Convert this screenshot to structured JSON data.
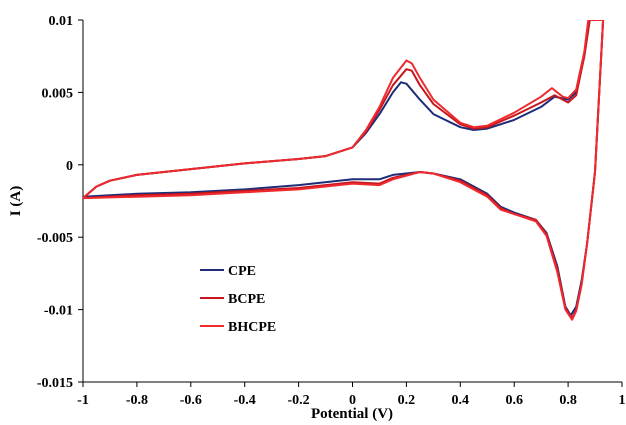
{
  "chart_data": {
    "type": "line",
    "title": "",
    "xlabel": "Potential (V)",
    "ylabel": "I (A)",
    "xlim": [
      -1,
      1
    ],
    "ylim": [
      -0.015,
      0.01
    ],
    "x_ticks": [
      -1,
      -0.8,
      -0.6,
      -0.4,
      -0.2,
      0,
      0.2,
      0.4,
      0.6,
      0.8,
      1
    ],
    "x_tick_labels": [
      "-1",
      "-0.8",
      "-0.6",
      "-0.4",
      "-0.2",
      "0",
      "0.2",
      "0.4",
      "0.6",
      "0.8",
      "1"
    ],
    "y_ticks": [
      0.01,
      0.005,
      0,
      -0.005,
      -0.01,
      -0.015
    ],
    "y_tick_labels": [
      "0.01",
      "0.005",
      "0",
      "-0.005",
      "-0.01",
      "-0.015"
    ],
    "grid": false,
    "legend_position": "bottom-left",
    "series": [
      {
        "name": "CPE",
        "color": "#1f2d78",
        "anodic": [
          [
            -1,
            -0.0023
          ],
          [
            -0.95,
            -0.0015
          ],
          [
            -0.9,
            -0.0011
          ],
          [
            -0.8,
            -0.0007
          ],
          [
            -0.6,
            -0.0003
          ],
          [
            -0.4,
            0.0001
          ],
          [
            -0.2,
            0.0004
          ],
          [
            -0.1,
            0.0006
          ],
          [
            0,
            0.0012
          ],
          [
            0.05,
            0.0022
          ],
          [
            0.1,
            0.0035
          ],
          [
            0.15,
            0.005
          ],
          [
            0.18,
            0.0057
          ],
          [
            0.2,
            0.0056
          ],
          [
            0.25,
            0.0045
          ],
          [
            0.3,
            0.0035
          ],
          [
            0.4,
            0.0026
          ],
          [
            0.45,
            0.0024
          ],
          [
            0.5,
            0.0025
          ],
          [
            0.6,
            0.0031
          ],
          [
            0.7,
            0.004
          ],
          [
            0.75,
            0.0047
          ],
          [
            0.8,
            0.0045
          ],
          [
            0.83,
            0.005
          ],
          [
            0.86,
            0.0075
          ],
          [
            0.88,
            0.01
          ]
        ],
        "cathodic": [
          [
            0.93,
            0.01
          ],
          [
            0.9,
            -0.0005
          ],
          [
            0.87,
            -0.0055
          ],
          [
            0.85,
            -0.008
          ],
          [
            0.83,
            -0.0098
          ],
          [
            0.81,
            -0.0104
          ],
          [
            0.79,
            -0.0098
          ],
          [
            0.76,
            -0.007
          ],
          [
            0.72,
            -0.0047
          ],
          [
            0.68,
            -0.0038
          ],
          [
            0.6,
            -0.0033
          ],
          [
            0.55,
            -0.0029
          ],
          [
            0.5,
            -0.002
          ],
          [
            0.4,
            -0.001
          ],
          [
            0.3,
            -0.0006
          ],
          [
            0.25,
            -0.0005
          ],
          [
            0.15,
            -0.0007
          ],
          [
            0.1,
            -0.001
          ],
          [
            0,
            -0.001
          ],
          [
            -0.2,
            -0.0014
          ],
          [
            -0.4,
            -0.0017
          ],
          [
            -0.6,
            -0.0019
          ],
          [
            -0.8,
            -0.002
          ],
          [
            -1,
            -0.0022
          ]
        ]
      },
      {
        "name": "BCPE",
        "color": "#c8161d",
        "anodic": [
          [
            -1,
            -0.0023
          ],
          [
            -0.95,
            -0.0015
          ],
          [
            -0.9,
            -0.0011
          ],
          [
            -0.8,
            -0.0007
          ],
          [
            -0.6,
            -0.0003
          ],
          [
            -0.4,
            0.0001
          ],
          [
            -0.2,
            0.0004
          ],
          [
            -0.1,
            0.0006
          ],
          [
            0,
            0.0012
          ],
          [
            0.05,
            0.0023
          ],
          [
            0.1,
            0.0038
          ],
          [
            0.15,
            0.0055
          ],
          [
            0.2,
            0.0066
          ],
          [
            0.22,
            0.0065
          ],
          [
            0.25,
            0.0055
          ],
          [
            0.3,
            0.0042
          ],
          [
            0.4,
            0.0028
          ],
          [
            0.45,
            0.0025
          ],
          [
            0.5,
            0.0026
          ],
          [
            0.6,
            0.0034
          ],
          [
            0.7,
            0.0043
          ],
          [
            0.75,
            0.0048
          ],
          [
            0.8,
            0.0043
          ],
          [
            0.83,
            0.0048
          ],
          [
            0.86,
            0.0075
          ],
          [
            0.88,
            0.01
          ]
        ],
        "cathodic": [
          [
            0.93,
            0.01
          ],
          [
            0.9,
            -0.0005
          ],
          [
            0.87,
            -0.0055
          ],
          [
            0.85,
            -0.0082
          ],
          [
            0.83,
            -0.01
          ],
          [
            0.815,
            -0.0106
          ],
          [
            0.79,
            -0.0099
          ],
          [
            0.76,
            -0.0072
          ],
          [
            0.72,
            -0.0048
          ],
          [
            0.68,
            -0.0038
          ],
          [
            0.6,
            -0.0034
          ],
          [
            0.55,
            -0.003
          ],
          [
            0.5,
            -0.0021
          ],
          [
            0.4,
            -0.0011
          ],
          [
            0.3,
            -0.0006
          ],
          [
            0.25,
            -0.0005
          ],
          [
            0.15,
            -0.0009
          ],
          [
            0.1,
            -0.0013
          ],
          [
            0,
            -0.0012
          ],
          [
            -0.2,
            -0.0016
          ],
          [
            -0.4,
            -0.0018
          ],
          [
            -0.6,
            -0.002
          ],
          [
            -0.8,
            -0.0021
          ],
          [
            -1,
            -0.0023
          ]
        ]
      },
      {
        "name": "BHCPE",
        "color": "#ee2a2f",
        "anodic": [
          [
            -1,
            -0.0023
          ],
          [
            -0.95,
            -0.0015
          ],
          [
            -0.9,
            -0.0011
          ],
          [
            -0.8,
            -0.0007
          ],
          [
            -0.6,
            -0.0003
          ],
          [
            -0.4,
            0.0001
          ],
          [
            -0.2,
            0.0004
          ],
          [
            -0.1,
            0.0006
          ],
          [
            0,
            0.0012
          ],
          [
            0.05,
            0.0024
          ],
          [
            0.1,
            0.004
          ],
          [
            0.15,
            0.006
          ],
          [
            0.2,
            0.0072
          ],
          [
            0.22,
            0.007
          ],
          [
            0.25,
            0.006
          ],
          [
            0.3,
            0.0045
          ],
          [
            0.4,
            0.0029
          ],
          [
            0.45,
            0.0026
          ],
          [
            0.5,
            0.0027
          ],
          [
            0.6,
            0.0036
          ],
          [
            0.7,
            0.0047
          ],
          [
            0.74,
            0.0053
          ],
          [
            0.78,
            0.0047
          ],
          [
            0.8,
            0.0046
          ],
          [
            0.83,
            0.0052
          ],
          [
            0.86,
            0.0078
          ],
          [
            0.875,
            0.01
          ]
        ],
        "cathodic": [
          [
            0.93,
            0.01
          ],
          [
            0.9,
            -0.0005
          ],
          [
            0.87,
            -0.0055
          ],
          [
            0.85,
            -0.0083
          ],
          [
            0.83,
            -0.0101
          ],
          [
            0.815,
            -0.0107
          ],
          [
            0.79,
            -0.01
          ],
          [
            0.76,
            -0.0074
          ],
          [
            0.72,
            -0.0049
          ],
          [
            0.68,
            -0.0039
          ],
          [
            0.6,
            -0.0034
          ],
          [
            0.55,
            -0.0031
          ],
          [
            0.5,
            -0.0022
          ],
          [
            0.4,
            -0.0012
          ],
          [
            0.3,
            -0.0006
          ],
          [
            0.25,
            -0.0005
          ],
          [
            0.15,
            -0.001
          ],
          [
            0.1,
            -0.0014
          ],
          [
            0,
            -0.0013
          ],
          [
            -0.2,
            -0.0017
          ],
          [
            -0.4,
            -0.0019
          ],
          [
            -0.6,
            -0.0021
          ],
          [
            -0.8,
            -0.0022
          ],
          [
            -1,
            -0.0023
          ]
        ]
      }
    ]
  }
}
